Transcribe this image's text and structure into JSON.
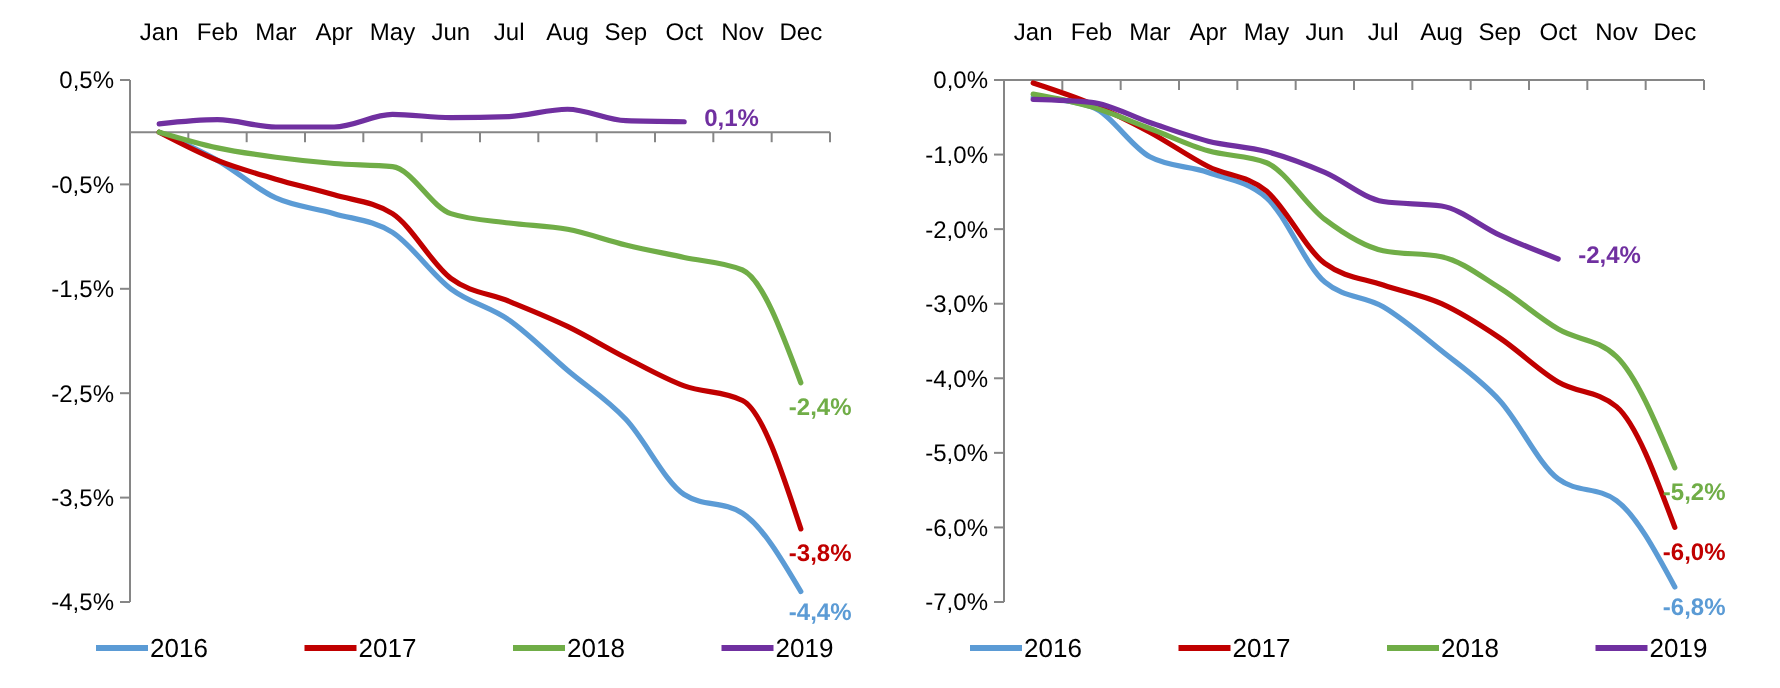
{
  "chart_data": [
    {
      "type": "line",
      "categories": [
        "Jan",
        "Feb",
        "Mar",
        "Apr",
        "May",
        "Jun",
        "Jul",
        "Aug",
        "Sep",
        "Oct",
        "Nov",
        "Dec"
      ],
      "ylim": [
        -4.5,
        0.5
      ],
      "yticks": [
        {
          "value": 0.5,
          "label": "0,5%"
        },
        {
          "value": -0.5,
          "label": "-0,5%"
        },
        {
          "value": -1.5,
          "label": "-1,5%"
        },
        {
          "value": -2.5,
          "label": "-2,5%"
        },
        {
          "value": -3.5,
          "label": "-3,5%"
        },
        {
          "value": -4.5,
          "label": "-4,5%"
        }
      ],
      "legend": "bottom",
      "grid": false,
      "marker": "none",
      "line_style": "solid",
      "series": [
        {
          "name": "2016",
          "color": "#5b9bd5",
          "values": [
            0,
            -0.27,
            -0.63,
            -0.78,
            -0.96,
            -1.5,
            -1.8,
            -2.28,
            -2.75,
            -3.47,
            -3.65,
            -4.4
          ],
          "value_labels": [
            null,
            null,
            null,
            null,
            null,
            null,
            null,
            null,
            null,
            null,
            null,
            "-4,4%"
          ]
        },
        {
          "name": "2017",
          "color": "#c00000",
          "values": [
            0,
            -0.27,
            -0.45,
            -0.6,
            -0.78,
            -1.4,
            -1.62,
            -1.86,
            -2.16,
            -2.43,
            -2.57,
            -3.8
          ],
          "value_labels": [
            null,
            null,
            null,
            null,
            null,
            null,
            null,
            null,
            null,
            null,
            null,
            "-3,8%"
          ]
        },
        {
          "name": "2018",
          "color": "#70ad47",
          "values": [
            0,
            -0.15,
            -0.24,
            -0.3,
            -0.33,
            -0.78,
            -0.87,
            -0.93,
            -1.08,
            -1.2,
            -1.32,
            -2.4
          ],
          "value_labels": [
            null,
            null,
            null,
            null,
            null,
            null,
            null,
            null,
            null,
            null,
            null,
            "-2,4%"
          ]
        },
        {
          "name": "2019",
          "color": "#7030a0",
          "values": [
            0.08,
            0.12,
            0.05,
            0.05,
            0.17,
            0.14,
            0.15,
            0.22,
            0.11,
            0.1,
            null,
            null
          ],
          "value_labels": [
            null,
            null,
            null,
            null,
            null,
            null,
            null,
            null,
            null,
            "0,1%",
            null,
            null
          ]
        }
      ]
    },
    {
      "type": "line",
      "categories": [
        "Jan",
        "Feb",
        "Mar",
        "Apr",
        "May",
        "Jun",
        "Jul",
        "Aug",
        "Sep",
        "Oct",
        "Nov",
        "Dec"
      ],
      "ylim": [
        -7,
        0
      ],
      "yticks": [
        {
          "value": 0,
          "label": "0,0%"
        },
        {
          "value": -1,
          "label": "-1,0%"
        },
        {
          "value": -2,
          "label": "-2,0%"
        },
        {
          "value": -3,
          "label": "-3,0%"
        },
        {
          "value": -4,
          "label": "-4,0%"
        },
        {
          "value": -5,
          "label": "-5,0%"
        },
        {
          "value": -6,
          "label": "-6,0%"
        },
        {
          "value": -7,
          "label": "-7,0%"
        }
      ],
      "legend": "bottom",
      "grid": false,
      "marker": "none",
      "line_style": "solid",
      "series": [
        {
          "name": "2016",
          "color": "#5b9bd5",
          "values": [
            -0.23,
            -0.36,
            -1.03,
            -1.24,
            -1.58,
            -2.71,
            -3.04,
            -3.63,
            -4.3,
            -5.35,
            -5.64,
            -6.8
          ],
          "value_labels": [
            null,
            null,
            null,
            null,
            null,
            null,
            null,
            null,
            null,
            null,
            null,
            "-6,8%"
          ]
        },
        {
          "name": "2017",
          "color": "#c00000",
          "values": [
            -0.04,
            -0.32,
            -0.7,
            -1.16,
            -1.49,
            -2.46,
            -2.75,
            -3.0,
            -3.46,
            -4.05,
            -4.38,
            -6.0
          ],
          "value_labels": [
            null,
            null,
            null,
            null,
            null,
            null,
            null,
            null,
            null,
            null,
            null,
            "-6,0%"
          ]
        },
        {
          "name": "2018",
          "color": "#70ad47",
          "values": [
            -0.19,
            -0.36,
            -0.65,
            -0.95,
            -1.11,
            -1.87,
            -2.29,
            -2.37,
            -2.79,
            -3.34,
            -3.71,
            -5.2
          ],
          "value_labels": [
            null,
            null,
            null,
            null,
            null,
            null,
            null,
            null,
            null,
            null,
            null,
            "-5,2%"
          ]
        },
        {
          "name": "2019",
          "color": "#7030a0",
          "values": [
            -0.26,
            -0.3,
            -0.57,
            -0.82,
            -0.96,
            -1.24,
            -1.63,
            -1.69,
            -2.08,
            -2.4,
            null,
            null
          ],
          "value_labels": [
            null,
            null,
            null,
            null,
            null,
            null,
            null,
            null,
            null,
            "-2,4%",
            null,
            null
          ]
        }
      ]
    }
  ]
}
